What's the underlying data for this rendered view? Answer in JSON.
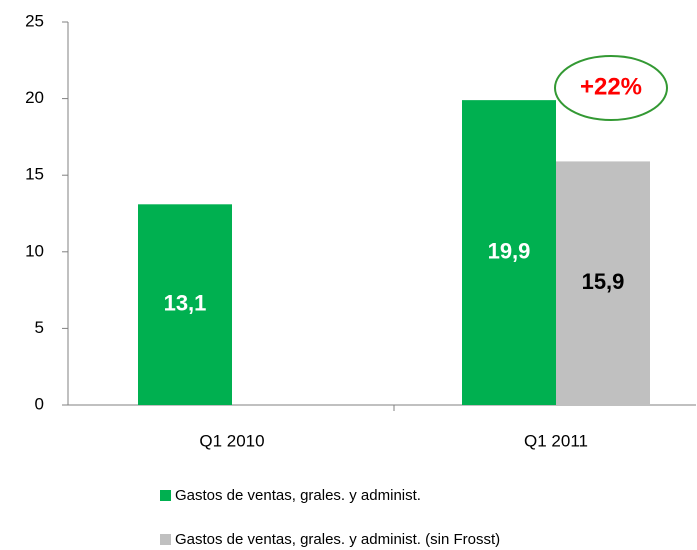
{
  "chart_data": {
    "type": "bar",
    "categories": [
      "Q1 2010",
      "Q1 2011"
    ],
    "series": [
      {
        "name": "Gastos de ventas, grales. y administ.",
        "color": "#00b050",
        "label_color": "#ffffff",
        "values": [
          13.1,
          19.9
        ],
        "value_labels": [
          "13,1",
          "19,9"
        ]
      },
      {
        "name": "Gastos de ventas, grales. y administ. (sin Frosst)",
        "color": "#c0c0c0",
        "label_color": "#000000",
        "values": [
          null,
          15.9
        ],
        "value_labels": [
          null,
          "15,9"
        ]
      }
    ],
    "ylim": [
      0,
      25
    ],
    "yticks": [
      0,
      5,
      10,
      15,
      20,
      25
    ],
    "grid": false,
    "annotation": "+22%",
    "annotation_color": "#339933"
  }
}
